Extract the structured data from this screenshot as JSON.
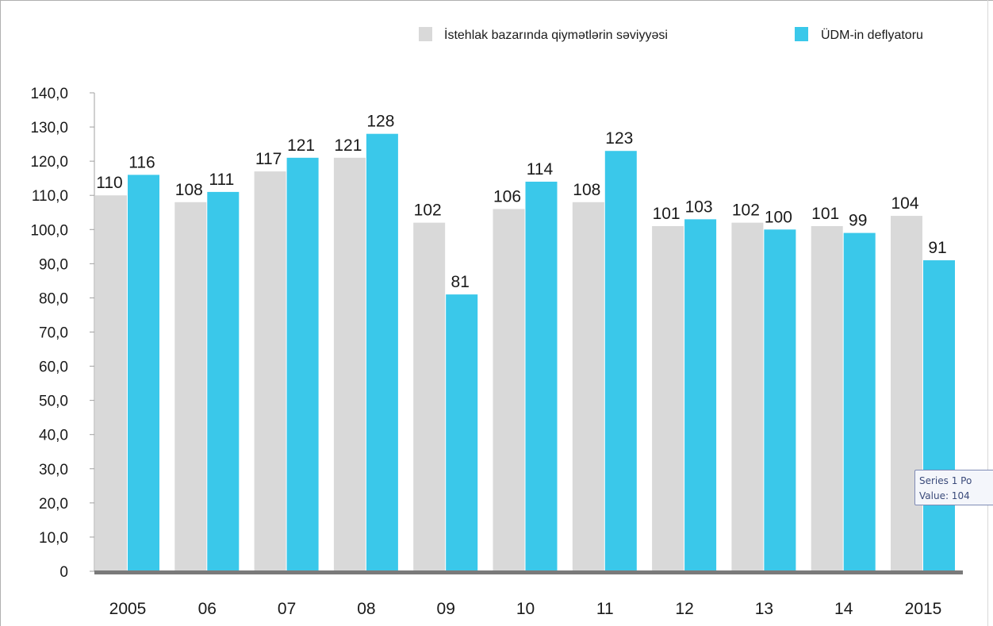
{
  "chart_data": {
    "type": "bar",
    "categories": [
      "2005",
      "06",
      "07",
      "08",
      "09",
      "10",
      "11",
      "12",
      "13",
      "14",
      "2015"
    ],
    "series": [
      {
        "name": "İstehlak bazarında qiymətlərin səviyyəsi",
        "values": [
          110,
          108,
          117,
          121,
          102,
          106,
          108,
          101,
          102,
          101,
          104
        ],
        "labels": [
          "110",
          "108",
          "117",
          "121",
          "102",
          "106",
          "108",
          "101",
          "102",
          "101",
          "104"
        ],
        "color": "#d9d9d9"
      },
      {
        "name": "ÜDM-in deflyatoru",
        "values": [
          116,
          111,
          121,
          128,
          81,
          114,
          123,
          103,
          100,
          99,
          91
        ],
        "labels": [
          "116",
          "111",
          "121",
          "128",
          "81",
          "114",
          "123",
          "103",
          "100",
          "99",
          "91"
        ],
        "color": "#3ac8ea"
      }
    ],
    "ylim": [
      0,
      140
    ],
    "yticks": [
      0,
      10,
      20,
      30,
      40,
      50,
      60,
      70,
      80,
      90,
      100,
      110,
      120,
      130,
      140
    ],
    "ytick_labels": [
      "0",
      "10,0",
      "20,0",
      "30,0",
      "40,0",
      "50,0",
      "60,0",
      "70,0",
      "80,0",
      "90,0",
      "100,0",
      "110,0",
      "120,0",
      "130,0",
      "140,0"
    ],
    "legend_position": "top-right",
    "grid": false
  },
  "tooltip": {
    "line1": "Series 1 Po",
    "line2": "Value:  104"
  }
}
